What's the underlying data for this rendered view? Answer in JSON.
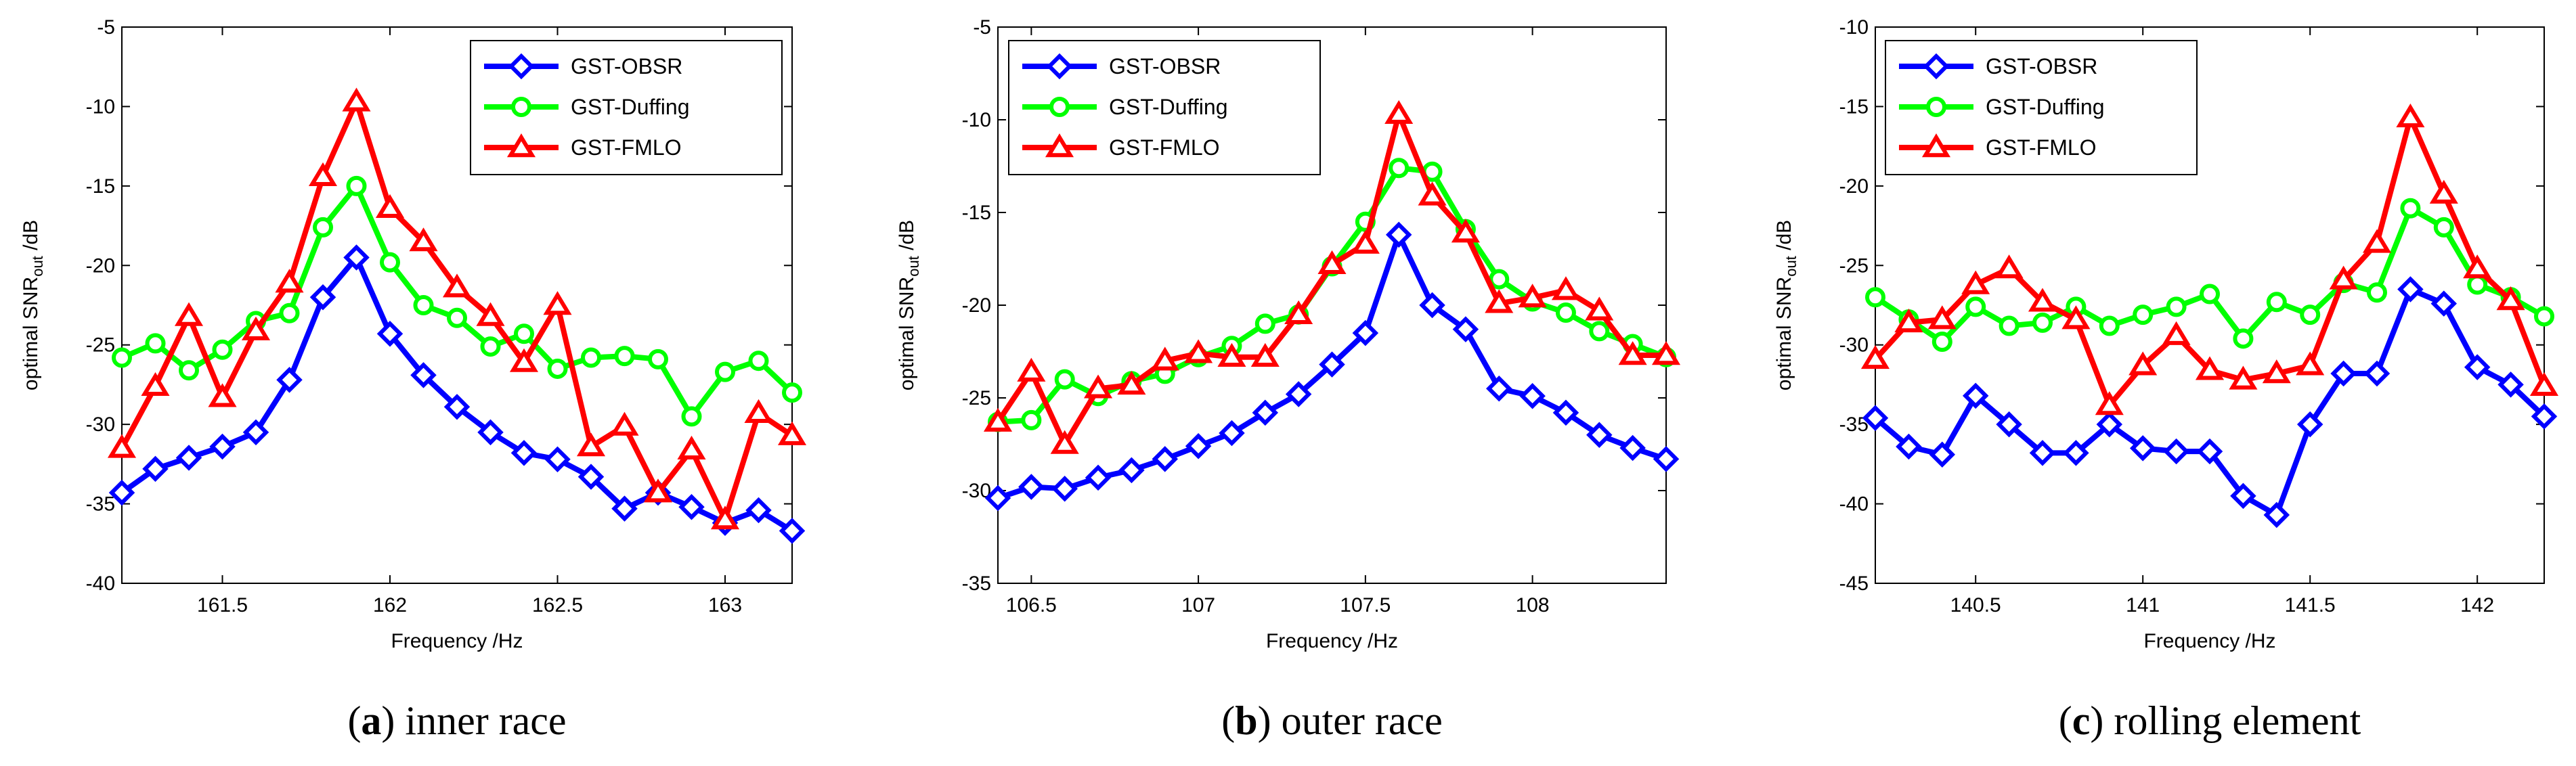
{
  "chart_data": [
    {
      "type": "line",
      "panel_letter": "a",
      "caption": "inner race",
      "xlabel": "Frequency /Hz",
      "ylabel": "optimal SNR",
      "ylabel_sub": "out",
      "ylabel_suffix": " /dB",
      "xlim": [
        161.2,
        163.2
      ],
      "ylim": [
        -40,
        -5
      ],
      "xticks": [
        161.5,
        162,
        162.5,
        163
      ],
      "xtick_labels": [
        "161.5",
        "162",
        "162.5",
        "163"
      ],
      "yticks": [
        -40,
        -35,
        -30,
        -25,
        -20,
        -15,
        -10,
        -5
      ],
      "ytick_labels": [
        "-40",
        "-35",
        "-30",
        "-25",
        "-20",
        "-15",
        "-10",
        "-5"
      ],
      "legend_loc": "top-right",
      "x": [
        161.2,
        161.3,
        161.4,
        161.5,
        161.6,
        161.7,
        161.8,
        161.9,
        162.0,
        162.1,
        162.2,
        162.3,
        162.4,
        162.5,
        162.6,
        162.7,
        162.8,
        162.9,
        163.0,
        163.1,
        163.2
      ],
      "series": [
        {
          "name": "GST-OBSR",
          "color": "#0000ff",
          "marker": "diamond",
          "values": [
            -34.3,
            -32.8,
            -32.1,
            -31.4,
            -30.5,
            -27.2,
            -22.0,
            -19.5,
            -24.3,
            -26.9,
            -28.9,
            -30.5,
            -31.8,
            -32.2,
            -33.3,
            -35.3,
            -34.3,
            -35.2,
            -36.2,
            -35.4,
            -36.7
          ]
        },
        {
          "name": "GST-Duffing",
          "color": "#00ff00",
          "marker": "circle",
          "values": [
            -25.8,
            -24.9,
            -26.6,
            -25.3,
            -23.5,
            -23.0,
            -17.6,
            -15.0,
            -19.8,
            -22.5,
            -23.3,
            -25.1,
            -24.3,
            -26.5,
            -25.8,
            -25.7,
            -25.9,
            -29.5,
            -26.7,
            -26.0,
            -28.0
          ]
        },
        {
          "name": "GST-FMLO",
          "color": "#ff0000",
          "marker": "triangle",
          "values": [
            -31.5,
            -27.6,
            -23.2,
            -28.3,
            -24.1,
            -21.1,
            -14.4,
            -9.7,
            -16.4,
            -18.5,
            -21.4,
            -23.2,
            -26.1,
            -22.5,
            -31.4,
            -30.1,
            -34.3,
            -31.6,
            -36.0,
            -29.3,
            -30.7
          ]
        }
      ]
    },
    {
      "type": "line",
      "panel_letter": "b",
      "caption": "outer race",
      "xlabel": "Frequency /Hz",
      "ylabel": "optimal SNR",
      "ylabel_sub": "out",
      "ylabel_suffix": " /dB",
      "xlim": [
        106.4,
        108.4
      ],
      "ylim": [
        -35,
        -5
      ],
      "xticks": [
        106.5,
        107,
        107.5,
        108
      ],
      "xtick_labels": [
        "106.5",
        "107",
        "107.5",
        "108"
      ],
      "yticks": [
        -35,
        -30,
        -25,
        -20,
        -15,
        -10,
        -5
      ],
      "ytick_labels": [
        "-35",
        "-30",
        "-25",
        "-20",
        "-15",
        "-10",
        "-5"
      ],
      "legend_loc": "top-left",
      "x": [
        106.4,
        106.5,
        106.6,
        106.7,
        106.8,
        106.9,
        107.0,
        107.1,
        107.2,
        107.3,
        107.4,
        107.5,
        107.6,
        107.7,
        107.8,
        107.9,
        108.0,
        108.1,
        108.2,
        108.3,
        108.4
      ],
      "series": [
        {
          "name": "GST-OBSR",
          "color": "#0000ff",
          "marker": "diamond",
          "values": [
            -30.4,
            -29.8,
            -29.9,
            -29.3,
            -28.9,
            -28.3,
            -27.6,
            -26.9,
            -25.8,
            -24.8,
            -23.2,
            -21.5,
            -16.2,
            -20.0,
            -21.3,
            -24.5,
            -24.9,
            -25.8,
            -27.0,
            -27.7,
            -28.3
          ]
        },
        {
          "name": "GST-Duffing",
          "color": "#00ff00",
          "marker": "circle",
          "values": [
            -26.3,
            -26.2,
            -24.0,
            -24.9,
            -24.1,
            -23.7,
            -22.8,
            -22.2,
            -21.0,
            -20.5,
            -17.9,
            -15.5,
            -12.6,
            -12.8,
            -15.9,
            -18.6,
            -19.8,
            -20.4,
            -21.4,
            -22.1,
            -22.8
          ]
        },
        {
          "name": "GST-FMLO",
          "color": "#ff0000",
          "marker": "triangle",
          "values": [
            -26.3,
            -23.6,
            -27.5,
            -24.5,
            -24.3,
            -23.0,
            -22.6,
            -22.8,
            -22.8,
            -20.5,
            -17.8,
            -16.7,
            -9.7,
            -14.1,
            -16.1,
            -19.9,
            -19.6,
            -19.2,
            -20.3,
            -22.7,
            -22.7
          ]
        }
      ]
    },
    {
      "type": "line",
      "panel_letter": "c",
      "caption": "rolling element",
      "xlabel": "Frequency /Hz",
      "ylabel": "optimal SNR",
      "ylabel_sub": "out",
      "ylabel_suffix": " /dB",
      "xlim": [
        140.2,
        142.2
      ],
      "ylim": [
        -45,
        -10
      ],
      "xticks": [
        140.5,
        141,
        141.5,
        142
      ],
      "xtick_labels": [
        "140.5",
        "141",
        "141.5",
        "142"
      ],
      "yticks": [
        -45,
        -40,
        -35,
        -30,
        -25,
        -20,
        -15,
        -10
      ],
      "ytick_labels": [
        "-45",
        "-40",
        "-35",
        "-30",
        "-25",
        "-20",
        "-15",
        "-10"
      ],
      "legend_loc": "top-left",
      "x": [
        140.2,
        140.3,
        140.4,
        140.5,
        140.6,
        140.7,
        140.8,
        140.9,
        141.0,
        141.1,
        141.2,
        141.3,
        141.4,
        141.5,
        141.6,
        141.7,
        141.8,
        141.9,
        142.0,
        142.1,
        142.2
      ],
      "series": [
        {
          "name": "GST-OBSR",
          "color": "#0000ff",
          "marker": "diamond",
          "values": [
            -34.6,
            -36.4,
            -36.9,
            -33.2,
            -35.0,
            -36.8,
            -36.8,
            -35.0,
            -36.5,
            -36.7,
            -36.7,
            -39.5,
            -40.7,
            -35.0,
            -31.8,
            -31.8,
            -26.5,
            -27.4,
            -31.4,
            -32.5,
            -34.5
          ]
        },
        {
          "name": "GST-Duffing",
          "color": "#00ff00",
          "marker": "circle",
          "values": [
            -27.0,
            -28.4,
            -29.8,
            -27.6,
            -28.8,
            -28.6,
            -27.6,
            -28.8,
            -28.1,
            -27.6,
            -26.8,
            -29.6,
            -27.3,
            -28.1,
            -26.1,
            -26.7,
            -21.4,
            -22.6,
            -26.2,
            -27.0,
            -28.2
          ]
        },
        {
          "name": "GST-FMLO",
          "color": "#ff0000",
          "marker": "triangle",
          "values": [
            -30.9,
            -28.6,
            -28.4,
            -26.2,
            -25.2,
            -27.3,
            -28.4,
            -33.8,
            -31.3,
            -29.4,
            -31.6,
            -32.2,
            -31.8,
            -31.3,
            -25.9,
            -23.6,
            -15.7,
            -20.5,
            -25.2,
            -27.2,
            -32.6
          ]
        }
      ]
    }
  ]
}
